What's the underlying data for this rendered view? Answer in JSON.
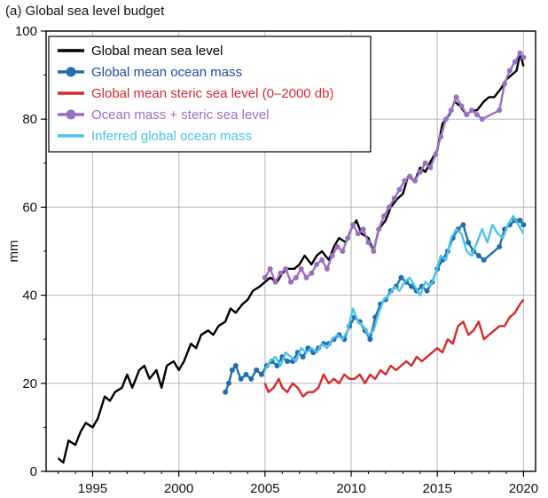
{
  "chart_data": {
    "type": "line",
    "title": "(a) Global sea level budget",
    "xlabel": "",
    "ylabel": "mm",
    "xlim": [
      1992.3,
      2020.7
    ],
    "ylim": [
      0,
      100
    ],
    "xticks": [
      1995,
      2000,
      2005,
      2010,
      2015,
      2020
    ],
    "yticks": [
      0,
      20,
      40,
      60,
      80,
      100
    ],
    "grid": true,
    "legend_position": "top-left",
    "series": [
      {
        "name": "Global mean sea level",
        "color": "#000000",
        "marker": "none",
        "x": [
          1993.0,
          1993.3,
          1993.6,
          1994.0,
          1994.3,
          1994.6,
          1995.0,
          1995.3,
          1995.7,
          1996.0,
          1996.3,
          1996.7,
          1997.0,
          1997.3,
          1997.7,
          1998.0,
          1998.3,
          1998.7,
          1999.0,
          1999.3,
          1999.7,
          2000.0,
          2000.3,
          2000.7,
          2001.0,
          2001.3,
          2001.7,
          2002.0,
          2002.3,
          2002.7,
          2003.0,
          2003.3,
          2003.7,
          2004.0,
          2004.3,
          2004.7,
          2005.0,
          2005.3,
          2005.7,
          2006.0,
          2006.3,
          2006.7,
          2007.0,
          2007.3,
          2007.7,
          2008.0,
          2008.3,
          2008.7,
          2009.0,
          2009.3,
          2009.7,
          2010.0,
          2010.3,
          2010.6,
          2011.0,
          2011.3,
          2011.6,
          2012.0,
          2012.3,
          2012.7,
          2013.0,
          2013.3,
          2013.7,
          2014.0,
          2014.3,
          2014.7,
          2015.0,
          2015.3,
          2015.7,
          2016.0,
          2016.3,
          2016.7,
          2017.0,
          2017.3,
          2017.7,
          2018.0,
          2018.3,
          2018.7,
          2019.0,
          2019.3,
          2019.6,
          2019.8,
          2020.0
        ],
        "values": [
          3,
          2,
          7,
          6,
          9,
          11,
          10,
          12,
          17,
          16,
          18,
          19,
          22,
          19,
          23,
          24,
          21,
          23,
          19,
          24,
          25,
          23,
          25,
          29,
          28,
          31,
          32,
          31,
          33,
          34,
          37,
          36,
          38,
          39,
          41,
          42,
          43,
          44,
          43,
          45,
          46,
          46,
          47,
          49,
          47,
          49,
          50,
          48,
          51,
          53,
          52,
          55,
          57,
          54,
          53,
          50,
          55,
          57,
          60,
          62,
          63,
          67,
          66,
          69,
          68,
          71,
          73,
          79,
          81,
          84,
          83,
          81,
          82,
          82,
          84,
          85,
          85,
          87,
          89,
          90,
          91,
          95,
          92
        ]
      },
      {
        "name": "Global mean ocean mass",
        "color": "#1f6fb0",
        "marker": "circle",
        "x": [
          2002.7,
          2002.9,
          2003.1,
          2003.3,
          2003.6,
          2003.9,
          2004.2,
          2004.5,
          2004.8,
          2005.1,
          2005.4,
          2005.7,
          2006.0,
          2006.3,
          2006.6,
          2006.9,
          2007.2,
          2007.5,
          2007.8,
          2008.1,
          2008.4,
          2008.7,
          2009.0,
          2009.3,
          2009.6,
          2009.9,
          2010.2,
          2010.5,
          2010.8,
          2011.1,
          2011.4,
          2011.7,
          2012.0,
          2012.3,
          2012.6,
          2012.9,
          2013.2,
          2013.5,
          2013.8,
          2014.1,
          2014.4,
          2014.7,
          2015.0,
          2015.3,
          2015.6,
          2015.9,
          2016.2,
          2016.5,
          2016.8,
          2017.1,
          2017.4,
          2017.7,
          2018.6,
          2018.9,
          2019.2,
          2019.5,
          2019.8,
          2020.0
        ],
        "values": [
          18,
          20,
          23,
          24,
          21,
          22,
          21,
          23,
          22,
          24,
          25,
          24,
          26,
          25,
          25,
          27,
          26,
          28,
          27,
          28,
          29,
          29,
          30,
          31,
          30,
          33,
          35,
          34,
          32,
          30,
          35,
          38,
          39,
          41,
          42,
          44,
          43,
          42,
          41,
          42,
          41,
          43,
          46,
          48,
          50,
          53,
          55,
          56,
          52,
          50,
          49,
          48,
          51,
          55,
          56,
          57,
          57,
          56
        ]
      },
      {
        "name": "Global mean steric sea level (0–2000 db)",
        "color": "#d42a2a",
        "marker": "none",
        "x": [
          2005.0,
          2005.2,
          2005.5,
          2005.8,
          2006.0,
          2006.3,
          2006.6,
          2006.9,
          2007.2,
          2007.5,
          2007.8,
          2008.1,
          2008.4,
          2008.7,
          2009.0,
          2009.3,
          2009.6,
          2009.9,
          2010.2,
          2010.5,
          2010.8,
          2011.1,
          2011.4,
          2011.7,
          2012.0,
          2012.3,
          2012.6,
          2012.9,
          2013.2,
          2013.5,
          2013.8,
          2014.1,
          2014.4,
          2014.7,
          2015.0,
          2015.3,
          2015.6,
          2015.9,
          2016.2,
          2016.5,
          2016.8,
          2017.1,
          2017.4,
          2017.7,
          2018.0,
          2018.3,
          2018.6,
          2018.9,
          2019.2,
          2019.5,
          2019.8,
          2020.0
        ],
        "values": [
          20,
          18,
          19,
          21,
          19,
          18,
          20,
          19,
          17,
          18,
          18,
          19,
          22,
          20,
          21,
          20,
          22,
          21,
          21,
          22,
          20,
          22,
          21,
          23,
          22,
          24,
          23,
          24,
          25,
          24,
          26,
          25,
          26,
          27,
          28,
          27,
          30,
          29,
          33,
          34,
          31,
          32,
          34,
          30,
          31,
          32,
          33,
          33,
          35,
          36,
          38,
          39
        ]
      },
      {
        "name": "Ocean mass + steric sea level",
        "color": "#9a6fc0",
        "marker": "circle",
        "x": [
          2005.0,
          2005.3,
          2005.6,
          2005.9,
          2006.2,
          2006.5,
          2006.8,
          2007.1,
          2007.4,
          2007.7,
          2008.0,
          2008.3,
          2008.6,
          2008.9,
          2009.2,
          2009.5,
          2009.8,
          2010.1,
          2010.4,
          2010.7,
          2011.0,
          2011.3,
          2011.6,
          2011.9,
          2012.2,
          2012.5,
          2012.8,
          2013.1,
          2013.4,
          2013.7,
          2014.0,
          2014.3,
          2014.6,
          2014.9,
          2015.2,
          2015.5,
          2015.8,
          2016.1,
          2016.4,
          2016.7,
          2017.0,
          2017.3,
          2017.6,
          2018.6,
          2018.9,
          2019.2,
          2019.5,
          2019.8,
          2020.0
        ],
        "values": [
          44,
          46,
          43,
          45,
          46,
          43,
          44,
          46,
          44,
          45,
          47,
          48,
          46,
          49,
          51,
          50,
          53,
          56,
          54,
          55,
          52,
          50,
          55,
          58,
          60,
          62,
          64,
          66,
          67,
          66,
          68,
          70,
          69,
          72,
          76,
          80,
          82,
          85,
          83,
          81,
          82,
          81,
          80,
          82,
          88,
          91,
          93,
          95,
          94
        ]
      },
      {
        "name": "Inferred global ocean mass",
        "color": "#4cc3e8",
        "marker": "none",
        "x": [
          2005.0,
          2005.3,
          2005.6,
          2005.9,
          2006.2,
          2006.5,
          2006.8,
          2007.1,
          2007.4,
          2007.7,
          2008.0,
          2008.3,
          2008.6,
          2008.9,
          2009.2,
          2009.5,
          2009.8,
          2010.1,
          2010.4,
          2010.7,
          2011.0,
          2011.3,
          2011.6,
          2011.9,
          2012.2,
          2012.5,
          2012.8,
          2013.1,
          2013.4,
          2013.7,
          2014.0,
          2014.3,
          2014.6,
          2014.9,
          2015.2,
          2015.5,
          2015.8,
          2016.1,
          2016.4,
          2016.7,
          2017.0,
          2017.3,
          2017.6,
          2017.9,
          2018.2,
          2018.5,
          2018.8,
          2019.1,
          2019.4,
          2019.7,
          2020.0
        ],
        "values": [
          23,
          25,
          26,
          24,
          27,
          26,
          25,
          28,
          27,
          28,
          27,
          29,
          28,
          30,
          31,
          30,
          32,
          37,
          34,
          33,
          31,
          32,
          36,
          39,
          40,
          42,
          41,
          43,
          44,
          42,
          40,
          43,
          42,
          45,
          49,
          48,
          53,
          55,
          54,
          50,
          49,
          52,
          55,
          52,
          56,
          54,
          53,
          56,
          58,
          56,
          54
        ]
      }
    ]
  }
}
